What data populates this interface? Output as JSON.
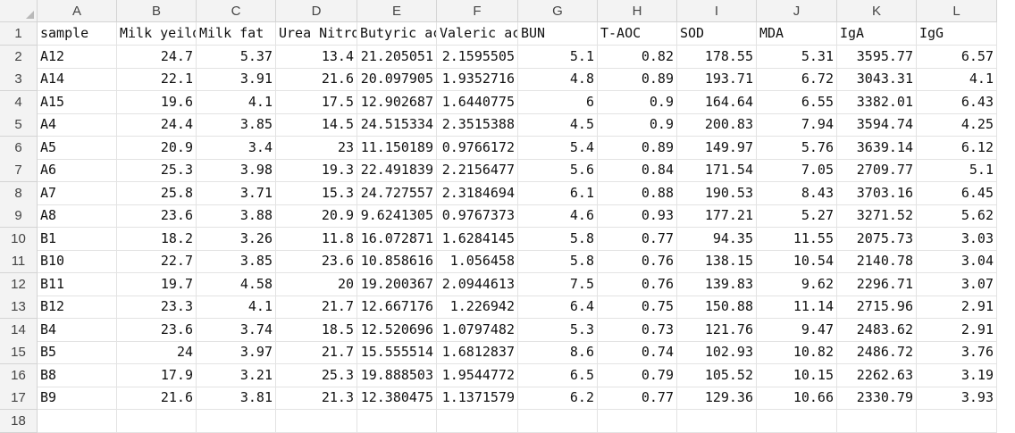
{
  "columns": [
    "A",
    "B",
    "C",
    "D",
    "E",
    "F",
    "G",
    "H",
    "I",
    "J",
    "K",
    "L"
  ],
  "rows": [
    {
      "n": "1",
      "cells": [
        "sample",
        "Milk yeild",
        "Milk fat",
        "Urea Nitrogen",
        "Butyric acid",
        "Valeric acid",
        "BUN",
        "T-AOC",
        "SOD",
        "MDA",
        "IgA",
        "IgG"
      ]
    },
    {
      "n": "2",
      "cells": [
        "A12",
        "24.7",
        "5.37",
        "13.4",
        "21.205051",
        "2.1595505",
        "5.1",
        "0.82",
        "178.55",
        "5.31",
        "3595.77",
        "6.57"
      ]
    },
    {
      "n": "3",
      "cells": [
        "A14",
        "22.1",
        "3.91",
        "21.6",
        "20.097905",
        "1.9352716",
        "4.8",
        "0.89",
        "193.71",
        "6.72",
        "3043.31",
        "4.1"
      ]
    },
    {
      "n": "4",
      "cells": [
        "A15",
        "19.6",
        "4.1",
        "17.5",
        "12.902687",
        "1.6440775",
        "6",
        "0.9",
        "164.64",
        "6.55",
        "3382.01",
        "6.43"
      ]
    },
    {
      "n": "5",
      "cells": [
        "A4",
        "24.4",
        "3.85",
        "14.5",
        "24.515334",
        "2.3515388",
        "4.5",
        "0.9",
        "200.83",
        "7.94",
        "3594.74",
        "4.25"
      ]
    },
    {
      "n": "6",
      "cells": [
        "A5",
        "20.9",
        "3.4",
        "23",
        "11.150189",
        "0.9766172",
        "5.4",
        "0.89",
        "149.97",
        "5.76",
        "3639.14",
        "6.12"
      ]
    },
    {
      "n": "7",
      "cells": [
        "A6",
        "25.3",
        "3.98",
        "19.3",
        "22.491839",
        "2.2156477",
        "5.6",
        "0.84",
        "171.54",
        "7.05",
        "2709.77",
        "5.1"
      ]
    },
    {
      "n": "8",
      "cells": [
        "A7",
        "25.8",
        "3.71",
        "15.3",
        "24.727557",
        "2.3184694",
        "6.1",
        "0.88",
        "190.53",
        "8.43",
        "3703.16",
        "6.45"
      ]
    },
    {
      "n": "9",
      "cells": [
        "A8",
        "23.6",
        "3.88",
        "20.9",
        "9.6241305",
        "0.9767373",
        "4.6",
        "0.93",
        "177.21",
        "5.27",
        "3271.52",
        "5.62"
      ]
    },
    {
      "n": "10",
      "cells": [
        "B1",
        "18.2",
        "3.26",
        "11.8",
        "16.072871",
        "1.6284145",
        "5.8",
        "0.77",
        "94.35",
        "11.55",
        "2075.73",
        "3.03"
      ]
    },
    {
      "n": "11",
      "cells": [
        "B10",
        "22.7",
        "3.85",
        "23.6",
        "10.858616",
        "1.056458",
        "5.8",
        "0.76",
        "138.15",
        "10.54",
        "2140.78",
        "3.04"
      ]
    },
    {
      "n": "12",
      "cells": [
        "B11",
        "19.7",
        "4.58",
        "20",
        "19.200367",
        "2.0944613",
        "7.5",
        "0.76",
        "139.83",
        "9.62",
        "2296.71",
        "3.07"
      ]
    },
    {
      "n": "13",
      "cells": [
        "B12",
        "23.3",
        "4.1",
        "21.7",
        "12.667176",
        "1.226942",
        "6.4",
        "0.75",
        "150.88",
        "11.14",
        "2715.96",
        "2.91"
      ]
    },
    {
      "n": "14",
      "cells": [
        "B4",
        "23.6",
        "3.74",
        "18.5",
        "12.520696",
        "1.0797482",
        "5.3",
        "0.73",
        "121.76",
        "9.47",
        "2483.62",
        "2.91"
      ]
    },
    {
      "n": "15",
      "cells": [
        "B5",
        "24",
        "3.97",
        "21.7",
        "15.555514",
        "1.6812837",
        "8.6",
        "0.74",
        "102.93",
        "10.82",
        "2486.72",
        "3.76"
      ]
    },
    {
      "n": "16",
      "cells": [
        "B8",
        "17.9",
        "3.21",
        "25.3",
        "19.888503",
        "1.9544772",
        "6.5",
        "0.79",
        "105.52",
        "10.15",
        "2262.63",
        "3.19"
      ]
    },
    {
      "n": "17",
      "cells": [
        "B9",
        "21.6",
        "3.81",
        "21.3",
        "12.380475",
        "1.1371579",
        "6.2",
        "0.77",
        "129.36",
        "10.66",
        "2330.79",
        "3.93"
      ]
    },
    {
      "n": "18",
      "cells": [
        "",
        "",
        "",
        "",
        "",
        "",
        "",
        "",
        "",
        "",
        "",
        ""
      ]
    }
  ]
}
